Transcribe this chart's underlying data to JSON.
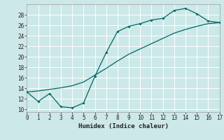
{
  "xlabel": "Humidex (Indice chaleur)",
  "background_color": "#cce8e8",
  "grid_color": "#ffffff",
  "line_color": "#006666",
  "xlim": [
    0,
    17
  ],
  "ylim": [
    9.5,
    30
  ],
  "xticks": [
    0,
    1,
    2,
    3,
    4,
    5,
    6,
    7,
    8,
    9,
    10,
    11,
    12,
    13,
    14,
    15,
    16,
    17
  ],
  "yticks": [
    10,
    12,
    14,
    16,
    18,
    20,
    22,
    24,
    26,
    28
  ],
  "curve1_x": [
    0,
    1,
    2,
    3,
    4,
    5,
    6,
    7,
    8,
    9,
    10,
    11,
    12,
    13,
    14,
    15,
    16,
    17
  ],
  "curve1_y": [
    13.3,
    11.5,
    13.0,
    10.5,
    10.3,
    11.2,
    16.3,
    20.8,
    24.8,
    25.8,
    26.3,
    27.0,
    27.3,
    28.8,
    29.2,
    28.2,
    26.8,
    26.5
  ],
  "curve2_x": [
    0,
    1,
    2,
    3,
    4,
    5,
    6,
    7,
    8,
    9,
    10,
    11,
    12,
    13,
    14,
    15,
    16,
    17
  ],
  "curve2_y": [
    13.3,
    13.5,
    13.8,
    14.1,
    14.5,
    15.2,
    16.5,
    17.8,
    19.2,
    20.5,
    21.5,
    22.5,
    23.5,
    24.5,
    25.2,
    25.8,
    26.3,
    26.5
  ],
  "marker_x": [
    0,
    1,
    2,
    3,
    4,
    5,
    6,
    7,
    8,
    9,
    10,
    11,
    12,
    13,
    14,
    15,
    16,
    17
  ],
  "marker_y": [
    13.3,
    11.5,
    13.0,
    10.5,
    10.3,
    11.2,
    16.3,
    20.8,
    24.8,
    25.8,
    26.3,
    27.0,
    27.3,
    28.8,
    29.2,
    28.2,
    26.8,
    26.5
  ],
  "tick_fontsize": 5.5,
  "xlabel_fontsize": 6.5
}
